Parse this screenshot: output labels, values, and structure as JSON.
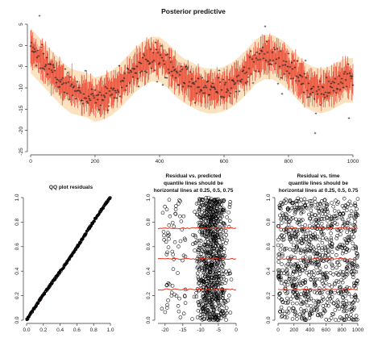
{
  "chart_data": [
    {
      "type": "scatter",
      "title": "Posterior predictive",
      "xlabel": "",
      "ylabel": "",
      "xlim": [
        0,
        1000
      ],
      "ylim": [
        -25,
        5
      ],
      "x_ticks": [
        "0",
        "200",
        "400",
        "600",
        "800",
        "1000"
      ],
      "y_ticks": [
        "5",
        "0",
        "-5",
        "-10",
        "-15",
        "-20",
        "-25"
      ],
      "grid": false,
      "series": [
        {
          "name": "",
          "role": "observed points, predicted median line, predictive interval band",
          "x": [
            0,
            25,
            50,
            75,
            100,
            125,
            150,
            175,
            200,
            225,
            250,
            275,
            300,
            325,
            350,
            375,
            400,
            425,
            450,
            475,
            500,
            525,
            550,
            575,
            600,
            625,
            650,
            675,
            700,
            725,
            750,
            775,
            800,
            825,
            850,
            875,
            900,
            925,
            950,
            975,
            1000
          ],
          "values": [
            -1,
            -3,
            -5,
            -7,
            -9,
            -10.5,
            -11,
            -11.5,
            -12.5,
            -12,
            -11,
            -9.5,
            -7.5,
            -5.5,
            -4,
            -3,
            -3,
            -4.5,
            -6.5,
            -8,
            -9,
            -10,
            -10.5,
            -10.5,
            -10,
            -9,
            -7.5,
            -5.5,
            -3.5,
            -2.5,
            -2.5,
            -3.5,
            -5,
            -7,
            -9,
            -10,
            -10.5,
            -10,
            -9,
            -8,
            -8
          ]
        }
      ],
      "colors": {
        "points": "#222222",
        "median": "#e8301c",
        "band": "#fbe3c2",
        "axis": "#333333"
      }
    },
    {
      "type": "scatter",
      "title": "QQ plot residuals",
      "xlabel": "",
      "ylabel": "",
      "xlim": [
        0,
        1
      ],
      "ylim": [
        0,
        1
      ],
      "x_ticks": [
        "0.0",
        "0.2",
        "0.4",
        "0.6",
        "0.8",
        "1.0"
      ],
      "y_ticks": [
        "0.0",
        "0.2",
        "0.4",
        "0.6",
        "0.8",
        "1.0"
      ],
      "reference_line": "y = x",
      "grid": false,
      "colors": {
        "points": "#000000",
        "reference": "#e8301c"
      }
    },
    {
      "type": "scatter",
      "title": [
        "Residual vs. predicted",
        "quantile lines should be",
        "horizontal lines at 0.25, 0.5, 0.75"
      ],
      "xlabel": "",
      "ylabel": "",
      "xlim": [
        -22,
        0
      ],
      "ylim": [
        0,
        1
      ],
      "x_ticks": [
        "-20",
        "-15",
        "-10",
        "-5",
        "0"
      ],
      "y_ticks": [
        "0.0",
        "0.2",
        "0.4",
        "0.6",
        "0.8",
        "1.0"
      ],
      "quantile_lines": [
        0.25,
        0.5,
        0.75
      ],
      "grid": false,
      "colors": {
        "points": "#000000",
        "quantile": "#e8301c"
      }
    },
    {
      "type": "scatter",
      "title": [
        "Residual vs. time",
        "quantile lines should be",
        "horizontal lines at 0.25, 0.5, 0.75"
      ],
      "xlabel": "",
      "ylabel": "",
      "xlim": [
        0,
        1000
      ],
      "ylim": [
        0,
        1
      ],
      "x_ticks": [
        "0",
        "200",
        "400",
        "600",
        "800",
        "1000"
      ],
      "y_ticks": [
        "0.0",
        "0.2",
        "0.4",
        "0.6",
        "0.8",
        "1.0"
      ],
      "quantile_lines": [
        0.25,
        0.5,
        0.75
      ],
      "grid": false,
      "colors": {
        "points": "#000000",
        "quantile": "#e8301c"
      }
    }
  ]
}
